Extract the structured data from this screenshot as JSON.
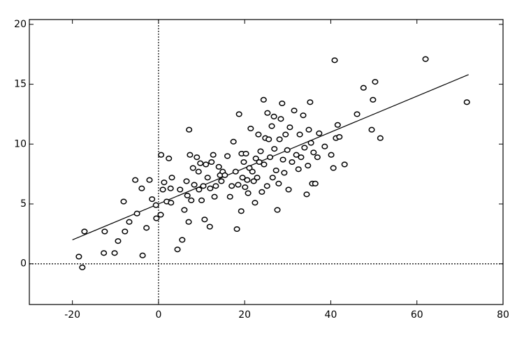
{
  "chart_data": {
    "type": "scatter",
    "color": "#000000",
    "x": [
      -18.5,
      -17.7,
      -17.2,
      -12.7,
      -12.5,
      -10.2,
      -9.4,
      -8.1,
      -7.8,
      -6.8,
      -5.4,
      -5.0,
      -3.9,
      -3.7,
      -2.8,
      -2.1,
      -1.5,
      -0.6,
      -0.5,
      0.5,
      0.6,
      1.0,
      1.3,
      1.9,
      2.4,
      2.8,
      2.9,
      3.1,
      4.4,
      5.0,
      5.5,
      6.0,
      6.5,
      6.7,
      7.0,
      7.1,
      7.3,
      7.6,
      8.0,
      8.3,
      8.9,
      9.3,
      9.4,
      9.7,
      10.0,
      10.4,
      10.7,
      11.0,
      11.4,
      11.9,
      12.0,
      12.3,
      12.7,
      13.0,
      13.3,
      14.0,
      14.3,
      14.6,
      14.9,
      15.4,
      16.0,
      16.6,
      17.0,
      17.4,
      17.9,
      18.2,
      18.5,
      18.7,
      19.2,
      19.3,
      19.5,
      19.8,
      20.1,
      20.3,
      20.6,
      20.8,
      21.1,
      21.4,
      21.8,
      22.1,
      22.4,
      22.6,
      22.9,
      23.2,
      23.4,
      23.7,
      24.0,
      24.4,
      24.5,
      24.8,
      25.2,
      25.3,
      25.6,
      25.9,
      26.3,
      26.5,
      26.8,
      26.9,
      27.3,
      27.6,
      27.9,
      28.1,
      28.4,
      28.7,
      28.9,
      29.2,
      29.5,
      29.9,
      30.2,
      30.5,
      31.0,
      31.5,
      32.0,
      32.5,
      32.8,
      33.1,
      33.6,
      33.9,
      34.4,
      34.7,
      34.9,
      35.2,
      35.4,
      35.7,
      36.0,
      36.4,
      36.9,
      37.3,
      38.6,
      40.1,
      40.6,
      40.9,
      41.2,
      41.6,
      42.0,
      43.2,
      46.1,
      47.6,
      49.5,
      49.8,
      50.3,
      51.5,
      62.0,
      71.6
    ],
    "y": [
      0.6,
      -0.3,
      2.7,
      0.9,
      2.7,
      0.9,
      1.9,
      5.2,
      2.7,
      3.5,
      7.0,
      4.2,
      6.3,
      0.7,
      3.0,
      7.0,
      5.4,
      4.9,
      3.8,
      4.1,
      9.1,
      6.2,
      6.8,
      5.2,
      8.8,
      6.3,
      5.1,
      7.2,
      1.2,
      6.2,
      2.0,
      4.5,
      6.9,
      5.7,
      3.5,
      11.2,
      9.1,
      5.3,
      8.0,
      6.6,
      8.9,
      7.7,
      6.2,
      8.4,
      5.3,
      6.5,
      3.7,
      8.3,
      7.2,
      3.1,
      6.3,
      8.5,
      9.1,
      5.6,
      6.5,
      8.1,
      7.4,
      6.9,
      7.7,
      7.4,
      9.0,
      5.6,
      6.5,
      10.2,
      7.7,
      2.9,
      6.6,
      12.5,
      4.4,
      9.2,
      7.2,
      8.5,
      6.4,
      9.2,
      7.0,
      5.9,
      8.0,
      11.3,
      7.7,
      6.9,
      5.1,
      8.8,
      7.2,
      10.8,
      8.5,
      9.4,
      6.0,
      13.7,
      8.3,
      10.5,
      6.5,
      12.6,
      10.4,
      8.9,
      11.5,
      7.2,
      12.3,
      9.6,
      7.8,
      4.5,
      6.7,
      10.4,
      12.1,
      13.4,
      8.7,
      7.6,
      10.8,
      9.5,
      6.2,
      11.4,
      8.5,
      12.8,
      9.1,
      7.9,
      10.8,
      8.9,
      12.4,
      9.7,
      5.8,
      8.2,
      11.2,
      13.5,
      10.1,
      6.7,
      9.3,
      6.7,
      8.9,
      10.9,
      9.8,
      9.1,
      8.0,
      17.0,
      10.5,
      11.6,
      10.6,
      8.3,
      12.5,
      14.7,
      11.2,
      13.7,
      15.2,
      10.5,
      17.1,
      13.5
    ],
    "fit_line": {
      "x": [
        -20,
        72
      ],
      "y": [
        2.0,
        15.8
      ]
    },
    "hline": 0,
    "vline": 0,
    "xlim": [
      -30,
      80
    ],
    "ylim": [
      -3.4,
      20.4
    ],
    "xticks": [
      -20,
      0,
      20,
      40,
      60,
      80
    ],
    "yticks": [
      0,
      5,
      10,
      15,
      20
    ]
  }
}
